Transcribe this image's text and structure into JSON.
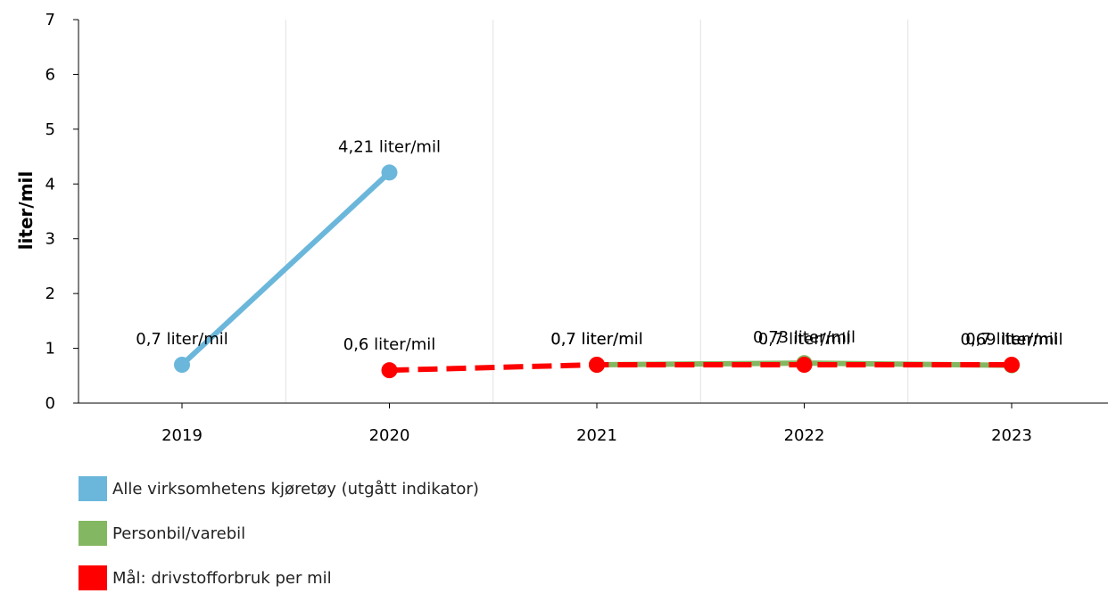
{
  "chart_data": {
    "type": "line",
    "ylabel": "liter/mil",
    "xlabel": "",
    "ylim": [
      0,
      7
    ],
    "yticks": [
      "0",
      "1",
      "2",
      "3",
      "4",
      "5",
      "6",
      "7"
    ],
    "categories": [
      "2019",
      "2020",
      "2021",
      "2022",
      "2023"
    ],
    "grid": true,
    "legend_position": "bottom-left",
    "series": [
      {
        "name": "Alle virksomhetens kjøretøy (utgått indikator)",
        "color": "#6bb7db",
        "style": "solid",
        "values": [
          0.7,
          4.21,
          null,
          null,
          null
        ],
        "labels": [
          "0,7 liter/mil",
          "4,21 liter/mil",
          null,
          null,
          null
        ]
      },
      {
        "name": "Personbil/varebil",
        "color": "#84b761",
        "style": "solid",
        "values": [
          null,
          null,
          0.7,
          0.73,
          0.69
        ],
        "labels": [
          null,
          null,
          "0,7 liter/mil",
          "0,73 liter/mil",
          "0,69 liter/mil"
        ]
      },
      {
        "name": "Mål: drivstofforbruk per mil",
        "color": "#ff0000",
        "style": "dashed",
        "values": [
          null,
          0.6,
          0.7,
          0.7,
          0.7
        ],
        "labels": [
          null,
          "0,6 liter/mil",
          "0,7 liter/mil",
          "0,7 liter/mil",
          "0,7 liter/mil"
        ]
      }
    ]
  }
}
